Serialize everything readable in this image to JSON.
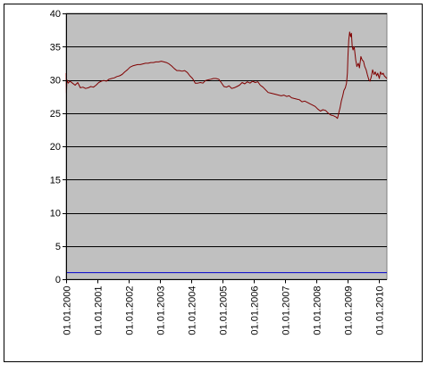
{
  "chart_data": {
    "type": "line",
    "title": "",
    "xlabel": "",
    "ylabel": "",
    "ylim": [
      0,
      40
    ],
    "yticks": [
      0,
      5,
      10,
      15,
      20,
      25,
      30,
      35,
      40
    ],
    "xlim": [
      "2000-01-01",
      "2010-03-31"
    ],
    "xtick_labels": [
      "01.01.2000",
      "01.01.2001",
      "01.01.2002",
      "01.01.2003",
      "01.01.2004",
      "01.01.2005",
      "01.01.2006",
      "01.01.2007",
      "01.01.2008",
      "01.01.2009",
      "01.01.2010"
    ],
    "grid": true,
    "legend": "none",
    "colors": {
      "plot_area": "#c0c0c0",
      "gridline": "#000000",
      "series_1": "#800000",
      "series_2": "#0000cc"
    },
    "series": [
      {
        "points": [
          [
            "2000-01-01",
            31.0
          ],
          [
            "2000-01-05",
            28.0
          ],
          [
            "2000-01-10",
            30.0
          ],
          [
            "2000-01-25",
            29.5
          ],
          [
            "2000-02-15",
            29.8
          ],
          [
            "2000-03-15",
            29.5
          ],
          [
            "2000-04-15",
            29.2
          ],
          [
            "2000-05-15",
            29.6
          ],
          [
            "2000-06-15",
            28.8
          ],
          [
            "2000-07-15",
            28.9
          ],
          [
            "2000-08-15",
            28.7
          ],
          [
            "2000-09-15",
            28.8
          ],
          [
            "2000-10-15",
            29.0
          ],
          [
            "2000-11-15",
            28.9
          ],
          [
            "2000-12-15",
            29.2
          ],
          [
            "2001-01-15",
            29.6
          ],
          [
            "2001-02-15",
            29.8
          ],
          [
            "2001-03-15",
            29.9
          ],
          [
            "2001-04-15",
            29.8
          ],
          [
            "2001-05-15",
            30.1
          ],
          [
            "2001-06-15",
            30.2
          ],
          [
            "2001-07-15",
            30.3
          ],
          [
            "2001-08-15",
            30.5
          ],
          [
            "2001-09-15",
            30.6
          ],
          [
            "2001-10-15",
            30.8
          ],
          [
            "2001-11-15",
            31.2
          ],
          [
            "2001-12-15",
            31.5
          ],
          [
            "2002-01-15",
            31.9
          ],
          [
            "2002-02-15",
            32.1
          ],
          [
            "2002-03-15",
            32.2
          ],
          [
            "2002-04-15",
            32.3
          ],
          [
            "2002-05-15",
            32.3
          ],
          [
            "2002-06-15",
            32.4
          ],
          [
            "2002-07-15",
            32.5
          ],
          [
            "2002-08-15",
            32.5
          ],
          [
            "2002-09-15",
            32.6
          ],
          [
            "2002-10-15",
            32.6
          ],
          [
            "2002-11-15",
            32.7
          ],
          [
            "2002-12-15",
            32.7
          ],
          [
            "2003-01-15",
            32.8
          ],
          [
            "2003-02-15",
            32.7
          ],
          [
            "2003-03-15",
            32.6
          ],
          [
            "2003-04-15",
            32.4
          ],
          [
            "2003-05-15",
            32.1
          ],
          [
            "2003-06-15",
            31.7
          ],
          [
            "2003-07-15",
            31.4
          ],
          [
            "2003-08-15",
            31.4
          ],
          [
            "2003-09-15",
            31.3
          ],
          [
            "2003-10-15",
            31.4
          ],
          [
            "2003-11-15",
            31.1
          ],
          [
            "2003-12-15",
            30.6
          ],
          [
            "2004-01-15",
            30.2
          ],
          [
            "2004-02-15",
            29.5
          ],
          [
            "2004-03-15",
            29.5
          ],
          [
            "2004-04-15",
            29.6
          ],
          [
            "2004-05-15",
            29.5
          ],
          [
            "2004-06-15",
            29.9
          ],
          [
            "2004-07-15",
            30.0
          ],
          [
            "2004-08-15",
            30.1
          ],
          [
            "2004-09-15",
            30.2
          ],
          [
            "2004-10-15",
            30.2
          ],
          [
            "2004-11-15",
            30.1
          ],
          [
            "2004-12-15",
            29.6
          ],
          [
            "2005-01-15",
            29.0
          ],
          [
            "2005-02-15",
            28.9
          ],
          [
            "2005-03-15",
            29.1
          ],
          [
            "2005-04-15",
            28.7
          ],
          [
            "2005-05-15",
            28.8
          ],
          [
            "2005-06-15",
            29.0
          ],
          [
            "2005-07-15",
            29.2
          ],
          [
            "2005-08-15",
            29.6
          ],
          [
            "2005-09-15",
            29.4
          ],
          [
            "2005-10-15",
            29.7
          ],
          [
            "2005-11-15",
            29.5
          ],
          [
            "2005-12-15",
            29.8
          ],
          [
            "2006-01-15",
            29.6
          ],
          [
            "2006-02-15",
            29.7
          ],
          [
            "2006-03-15",
            29.2
          ],
          [
            "2006-04-15",
            28.9
          ],
          [
            "2006-05-15",
            28.5
          ],
          [
            "2006-06-15",
            28.1
          ],
          [
            "2006-07-15",
            28.0
          ],
          [
            "2006-08-15",
            27.9
          ],
          [
            "2006-09-15",
            27.8
          ],
          [
            "2006-10-15",
            27.7
          ],
          [
            "2006-11-15",
            27.6
          ],
          [
            "2006-12-15",
            27.7
          ],
          [
            "2007-01-15",
            27.5
          ],
          [
            "2007-02-15",
            27.6
          ],
          [
            "2007-03-15",
            27.3
          ],
          [
            "2007-04-15",
            27.2
          ],
          [
            "2007-05-15",
            27.1
          ],
          [
            "2007-06-15",
            27.0
          ],
          [
            "2007-07-15",
            26.7
          ],
          [
            "2007-08-15",
            26.8
          ],
          [
            "2007-09-15",
            26.6
          ],
          [
            "2007-10-15",
            26.4
          ],
          [
            "2007-11-15",
            26.2
          ],
          [
            "2007-12-15",
            26.0
          ],
          [
            "2008-01-15",
            25.6
          ],
          [
            "2008-02-15",
            25.3
          ],
          [
            "2008-03-15",
            25.5
          ],
          [
            "2008-04-15",
            25.4
          ],
          [
            "2008-05-15",
            25.0
          ],
          [
            "2008-06-15",
            24.7
          ],
          [
            "2008-07-15",
            24.6
          ],
          [
            "2008-08-15",
            24.4
          ],
          [
            "2008-09-01",
            24.2
          ],
          [
            "2008-09-15",
            25.0
          ],
          [
            "2008-10-01",
            25.8
          ],
          [
            "2008-10-15",
            26.8
          ],
          [
            "2008-11-01",
            27.6
          ],
          [
            "2008-11-15",
            28.4
          ],
          [
            "2008-12-01",
            28.8
          ],
          [
            "2008-12-15",
            29.5
          ],
          [
            "2008-12-25",
            31.0
          ],
          [
            "2009-01-01",
            33.5
          ],
          [
            "2009-01-10",
            36.0
          ],
          [
            "2009-01-20",
            37.2
          ],
          [
            "2009-02-01",
            36.5
          ],
          [
            "2009-02-10",
            37.0
          ],
          [
            "2009-02-20",
            35.0
          ],
          [
            "2009-03-01",
            34.5
          ],
          [
            "2009-03-15",
            35.0
          ],
          [
            "2009-04-01",
            33.0
          ],
          [
            "2009-04-15",
            32.0
          ],
          [
            "2009-05-01",
            32.5
          ],
          [
            "2009-05-15",
            31.8
          ],
          [
            "2009-06-01",
            33.5
          ],
          [
            "2009-06-15",
            33.0
          ],
          [
            "2009-07-01",
            32.8
          ],
          [
            "2009-07-15",
            32.0
          ],
          [
            "2009-08-01",
            31.5
          ],
          [
            "2009-08-15",
            30.8
          ],
          [
            "2009-09-01",
            30.0
          ],
          [
            "2009-09-15",
            29.8
          ],
          [
            "2009-10-01",
            30.5
          ],
          [
            "2009-10-15",
            31.5
          ],
          [
            "2009-11-01",
            30.8
          ],
          [
            "2009-11-15",
            31.2
          ],
          [
            "2009-12-01",
            30.6
          ],
          [
            "2009-12-15",
            31.0
          ],
          [
            "2010-01-01",
            30.2
          ],
          [
            "2010-01-15",
            31.2
          ],
          [
            "2010-02-01",
            30.8
          ],
          [
            "2010-02-15",
            31.0
          ],
          [
            "2010-03-01",
            30.6
          ],
          [
            "2010-03-15",
            30.4
          ],
          [
            "2010-03-31",
            30.2
          ]
        ]
      },
      {
        "points": [
          [
            "2000-01-01",
            1.0
          ],
          [
            "2010-03-31",
            1.0
          ]
        ]
      }
    ]
  }
}
